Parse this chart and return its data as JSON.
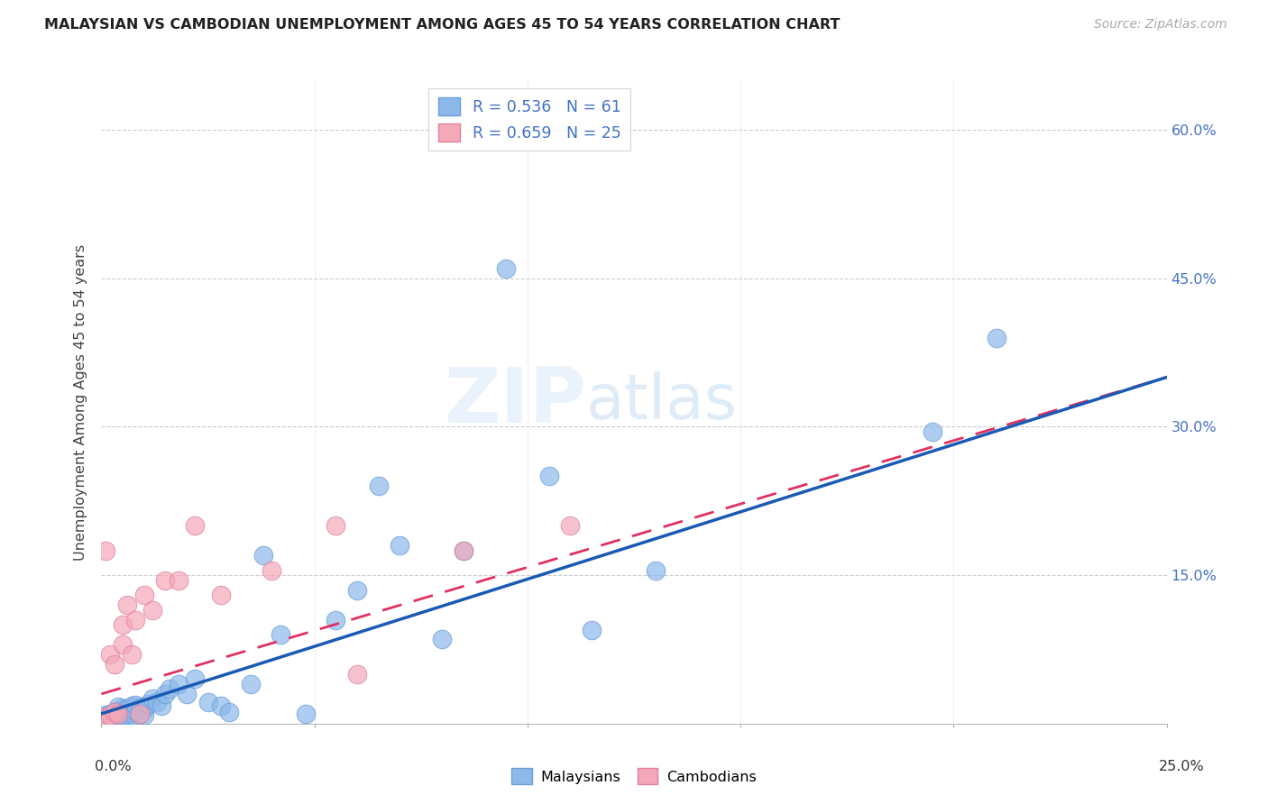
{
  "title": "MALAYSIAN VS CAMBODIAN UNEMPLOYMENT AMONG AGES 45 TO 54 YEARS CORRELATION CHART",
  "source": "Source: ZipAtlas.com",
  "ylabel": "Unemployment Among Ages 45 to 54 years",
  "xlim": [
    0.0,
    0.25
  ],
  "ylim": [
    0.0,
    0.65
  ],
  "malaysia_color": "#8cb8ea",
  "malaysia_edge": "#6a9fd8",
  "cambodia_color": "#f4a8b8",
  "cambodia_edge": "#e080a0",
  "trend_malaysia_color": "#1a5ab4",
  "trend_cambodia_color": "#e03060",
  "legend_r_malaysia": "R = 0.536",
  "legend_n_malaysia": "N = 61",
  "legend_r_cambodia": "R = 0.659",
  "legend_n_cambodia": "N = 25",
  "yticks": [
    0.0,
    0.15,
    0.3,
    0.45,
    0.6
  ],
  "ytick_labels": [
    "",
    "15.0%",
    "30.0%",
    "45.0%",
    "60.0%"
  ],
  "malaysia_x": [
    0.0005,
    0.001,
    0.001,
    0.001,
    0.0015,
    0.002,
    0.002,
    0.002,
    0.0025,
    0.003,
    0.003,
    0.003,
    0.004,
    0.004,
    0.004,
    0.004,
    0.005,
    0.005,
    0.005,
    0.005,
    0.006,
    0.006,
    0.006,
    0.007,
    0.007,
    0.007,
    0.008,
    0.008,
    0.008,
    0.009,
    0.009,
    0.01,
    0.01,
    0.011,
    0.012,
    0.013,
    0.014,
    0.015,
    0.016,
    0.018,
    0.02,
    0.022,
    0.025,
    0.028,
    0.03,
    0.035,
    0.038,
    0.042,
    0.048,
    0.055,
    0.06,
    0.065,
    0.07,
    0.08,
    0.085,
    0.095,
    0.105,
    0.115,
    0.13,
    0.195,
    0.21
  ],
  "malaysia_y": [
    0.002,
    0.003,
    0.006,
    0.009,
    0.004,
    0.003,
    0.007,
    0.01,
    0.005,
    0.004,
    0.008,
    0.012,
    0.005,
    0.009,
    0.013,
    0.017,
    0.004,
    0.007,
    0.011,
    0.015,
    0.006,
    0.01,
    0.015,
    0.008,
    0.012,
    0.018,
    0.007,
    0.013,
    0.019,
    0.01,
    0.016,
    0.009,
    0.015,
    0.02,
    0.025,
    0.022,
    0.018,
    0.03,
    0.035,
    0.04,
    0.03,
    0.045,
    0.022,
    0.018,
    0.012,
    0.04,
    0.17,
    0.09,
    0.01,
    0.105,
    0.135,
    0.24,
    0.18,
    0.085,
    0.175,
    0.46,
    0.25,
    0.095,
    0.155,
    0.295,
    0.39
  ],
  "cambodia_x": [
    0.0005,
    0.001,
    0.001,
    0.002,
    0.002,
    0.003,
    0.003,
    0.004,
    0.005,
    0.005,
    0.006,
    0.007,
    0.008,
    0.009,
    0.01,
    0.012,
    0.015,
    0.018,
    0.022,
    0.028,
    0.04,
    0.055,
    0.06,
    0.085,
    0.11
  ],
  "cambodia_y": [
    0.004,
    0.006,
    0.175,
    0.008,
    0.07,
    0.012,
    0.06,
    0.01,
    0.1,
    0.08,
    0.12,
    0.07,
    0.105,
    0.01,
    0.13,
    0.115,
    0.145,
    0.145,
    0.2,
    0.13,
    0.155,
    0.2,
    0.05,
    0.175,
    0.2
  ]
}
